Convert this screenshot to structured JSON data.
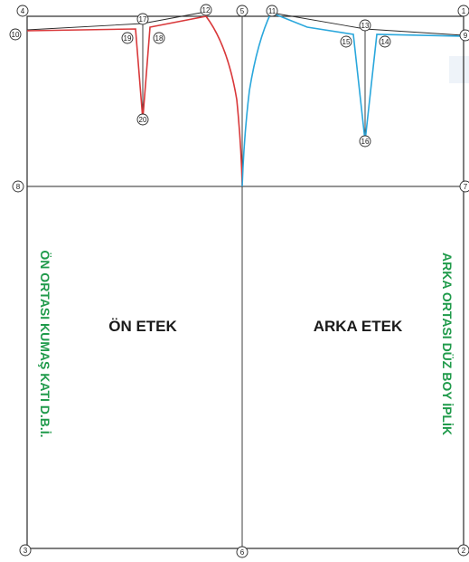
{
  "pattern": {
    "front_label": "ÖN ETEK",
    "back_label": "ARKA ETEK",
    "front_side_note": "ÖN ORTASI KUMAŞ KATI D.B.İ.",
    "back_side_note": "ARKA ORTASI DÜZ BOY İPLİK",
    "colors": {
      "front": "#d9383a",
      "back": "#2aa7dc",
      "note": "#1f9a4a",
      "line": "#2a2a2a"
    },
    "points": [
      {
        "id": "1",
        "label": "1"
      },
      {
        "id": "2",
        "label": "2"
      },
      {
        "id": "3",
        "label": "3"
      },
      {
        "id": "4",
        "label": "4"
      },
      {
        "id": "5",
        "label": "5"
      },
      {
        "id": "6",
        "label": "6"
      },
      {
        "id": "7",
        "label": "7"
      },
      {
        "id": "8",
        "label": "8"
      },
      {
        "id": "9",
        "label": "9"
      },
      {
        "id": "10",
        "label": "10"
      },
      {
        "id": "11",
        "label": "11"
      },
      {
        "id": "12",
        "label": "12"
      },
      {
        "id": "13",
        "label": "13"
      },
      {
        "id": "14",
        "label": "14"
      },
      {
        "id": "15",
        "label": "15"
      },
      {
        "id": "16",
        "label": "16"
      },
      {
        "id": "17",
        "label": "17"
      },
      {
        "id": "18",
        "label": "18"
      },
      {
        "id": "19",
        "label": "19"
      },
      {
        "id": "20",
        "label": "20"
      }
    ]
  }
}
